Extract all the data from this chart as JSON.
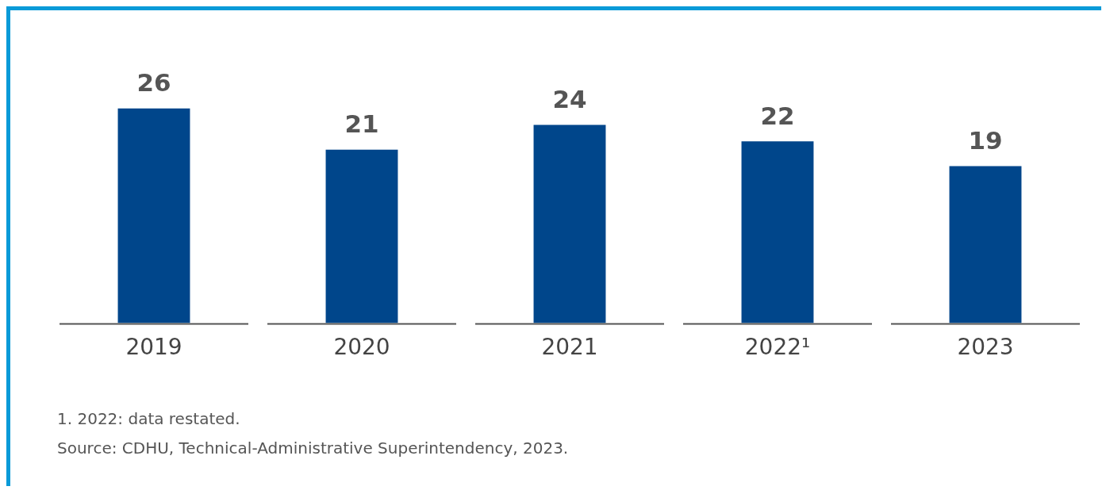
{
  "chart_data": {
    "type": "bar",
    "categories": [
      "2019",
      "2020",
      "2021",
      "2022¹",
      "2023"
    ],
    "values": [
      26,
      21,
      24,
      22,
      19
    ],
    "color": "#00468b",
    "data_labels": true,
    "grid": false,
    "legend": false,
    "tick_labels": "x",
    "annotations": [
      "1. 2022: data restated.",
      "Source: CDHU, Technical-Administrative Superintendency, 2023."
    ]
  }
}
